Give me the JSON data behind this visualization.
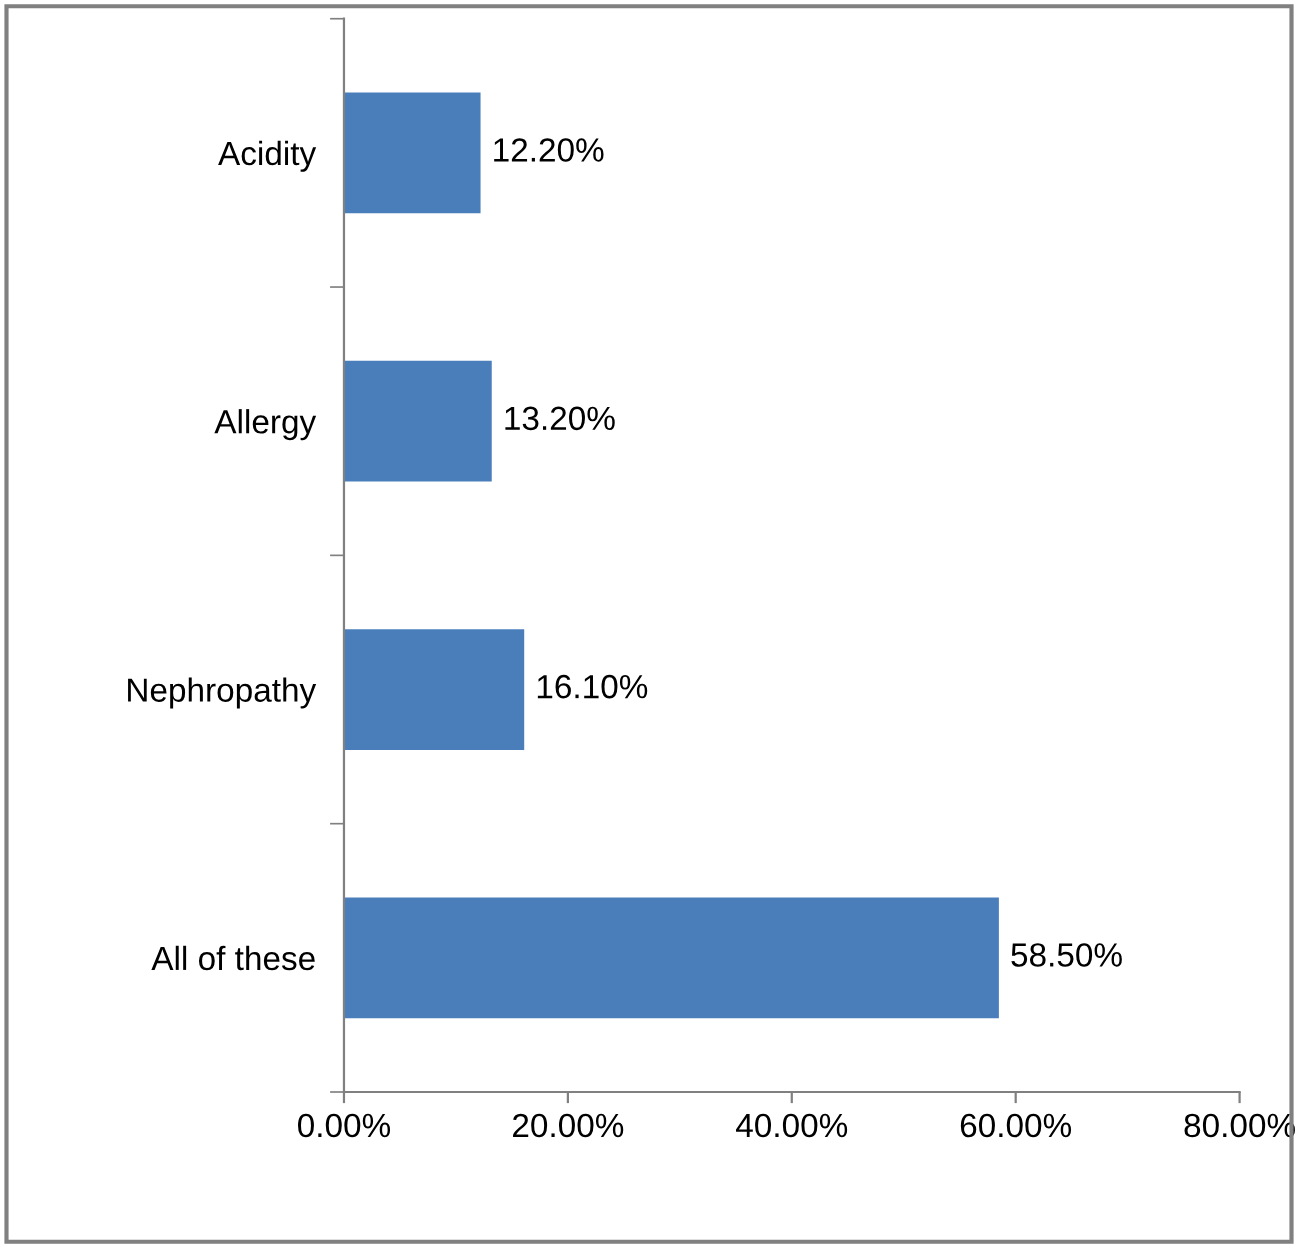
{
  "chart_data": {
    "type": "bar",
    "orientation": "horizontal",
    "categories": [
      "Acidity",
      "Allergy",
      "Nephropathy",
      "All of these"
    ],
    "series": [
      {
        "color": "#4a7ebb",
        "values": [
          12.2,
          13.2,
          16.1,
          58.5
        ],
        "value_labels": [
          "12.20%",
          "13.20%",
          "16.10%",
          "58.50%"
        ]
      }
    ],
    "xlim": [
      0,
      80
    ],
    "xticks": [
      {
        "value": 0,
        "label": "0.00%"
      },
      {
        "value": 20,
        "label": "20.00%"
      },
      {
        "value": 40,
        "label": "40.00%"
      },
      {
        "value": 60,
        "label": "60.00%"
      },
      {
        "value": 80,
        "label": "80.00%"
      }
    ],
    "grid": false,
    "legend": false
  }
}
